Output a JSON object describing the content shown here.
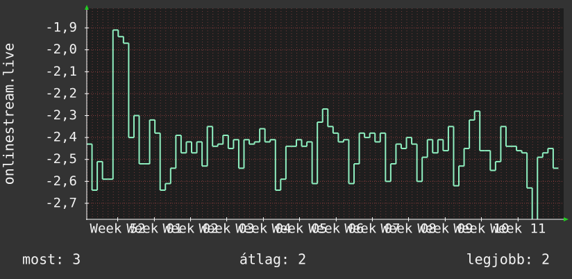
{
  "chart_data": {
    "type": "line",
    "y_label": "onlinestream.live",
    "values": [
      -2.43,
      -2.64,
      -2.51,
      -2.59,
      -2.59,
      -1.91,
      -1.94,
      -1.97,
      -2.4,
      -2.3,
      -2.52,
      -2.52,
      -2.32,
      -2.38,
      -2.64,
      -2.61,
      -2.54,
      -2.39,
      -2.47,
      -2.42,
      -2.47,
      -2.42,
      -2.53,
      -2.35,
      -2.44,
      -2.43,
      -2.39,
      -2.45,
      -2.41,
      -2.54,
      -2.41,
      -2.43,
      -2.42,
      -2.36,
      -2.42,
      -2.41,
      -2.64,
      -2.59,
      -2.44,
      -2.44,
      -2.41,
      -2.44,
      -2.42,
      -2.61,
      -2.33,
      -2.27,
      -2.35,
      -2.38,
      -2.42,
      -2.41,
      -2.61,
      -2.52,
      -2.38,
      -2.4,
      -2.38,
      -2.42,
      -2.38,
      -2.6,
      -2.52,
      -2.43,
      -2.45,
      -2.4,
      -2.43,
      -2.6,
      -2.49,
      -2.41,
      -2.47,
      -2.41,
      -2.46,
      -2.35,
      -2.62,
      -2.53,
      -2.45,
      -2.32,
      -2.28,
      -2.46,
      -2.46,
      -2.55,
      -2.51,
      -2.35,
      -2.44,
      -2.44,
      -2.46,
      -2.47,
      -2.63,
      -2.78,
      -2.49,
      -2.47,
      -2.45,
      -2.54
    ],
    "color": "#8ff0c0",
    "xlim": [
      0,
      91
    ],
    "xticks": [
      {
        "value": 5.9,
        "label": "Week 52"
      },
      {
        "value": 12.9,
        "label": "Week 01"
      },
      {
        "value": 19.8,
        "label": "Week 02"
      },
      {
        "value": 26.7,
        "label": "Week 03"
      },
      {
        "value": 33.7,
        "label": "Week 04"
      },
      {
        "value": 40.6,
        "label": "Week 05"
      },
      {
        "value": 47.6,
        "label": "Week 06"
      },
      {
        "value": 54.5,
        "label": "Week 07"
      },
      {
        "value": 61.4,
        "label": "Week 08"
      },
      {
        "value": 68.4,
        "label": "Week 09"
      },
      {
        "value": 75.3,
        "label": "Week 10"
      },
      {
        "value": 82.3,
        "label": "Week 11"
      }
    ],
    "ylim": [
      -2.773,
      -1.811
    ],
    "yticks": [
      {
        "value": -1.9,
        "label": "-1,9"
      },
      {
        "value": -2.0,
        "label": "-2,0"
      },
      {
        "value": -2.1,
        "label": "-2,1"
      },
      {
        "value": -2.2,
        "label": "-2,2"
      },
      {
        "value": -2.3,
        "label": "-2,3"
      },
      {
        "value": -2.4,
        "label": "-2,4"
      },
      {
        "value": -2.5,
        "label": "-2,5"
      },
      {
        "value": -2.6,
        "label": "-2,6"
      },
      {
        "value": -2.7,
        "label": "-2,7"
      }
    ],
    "grid": true,
    "stats": [
      "most: 3",
      "átlag: 2",
      "legjobb: 2"
    ]
  }
}
